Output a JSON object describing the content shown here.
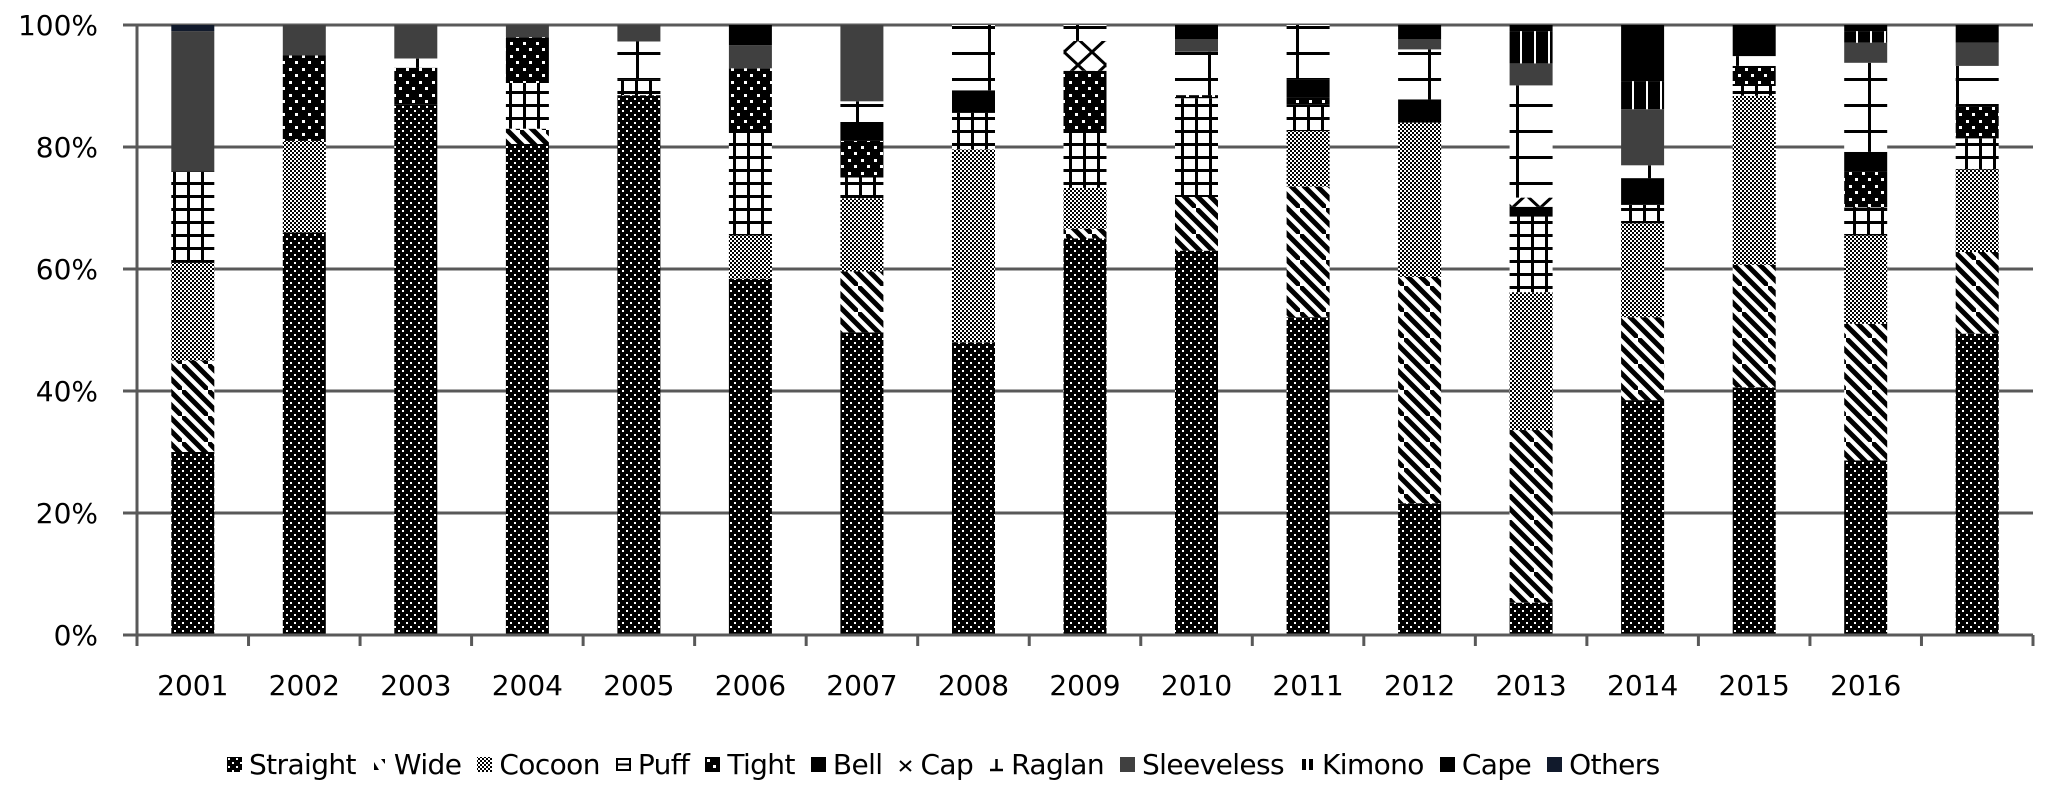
{
  "chart_data": {
    "type": "bar",
    "stacked": true,
    "normalized": true,
    "title": "",
    "xlabel": "",
    "ylabel": "",
    "ylim": [
      0,
      100
    ],
    "yticks": [
      "0%",
      "20%",
      "40%",
      "60%",
      "80%",
      "100%"
    ],
    "grid": true,
    "legend_position": "bottom",
    "categories": [
      "2001",
      "2002",
      "2003",
      "2004",
      "2005",
      "2006",
      "2007",
      "2008",
      "2009",
      "2010",
      "2011",
      "2012",
      "2013",
      "2014",
      "2015",
      "2016",
      ""
    ],
    "series": [
      {
        "name": "Straight",
        "pattern": "dots",
        "values": [
          30,
          66,
          87,
          80.5,
          88.5,
          58.4,
          49.6,
          48,
          65,
          63,
          52.1,
          21.6,
          5.3,
          38.5,
          40.6,
          28.6,
          49.4
        ]
      },
      {
        "name": "Wide",
        "pattern": "diagonal",
        "values": [
          15,
          0,
          0,
          2.5,
          0,
          0,
          10,
          0,
          1.6,
          8.8,
          21.4,
          37.1,
          28.3,
          13.6,
          20.1,
          22.4,
          13.4
        ]
      },
      {
        "name": "Cocoon",
        "pattern": "checker",
        "values": [
          16,
          15,
          0,
          0,
          0,
          7.1,
          12,
          31.6,
          6.7,
          0,
          9.1,
          25.3,
          22.6,
          15.4,
          27.7,
          14.5,
          13.5
        ]
      },
      {
        "name": "Puff",
        "pattern": "grid",
        "values": [
          15,
          0,
          0,
          7.5,
          2.5,
          16.8,
          3.4,
          6,
          9,
          16.2,
          4.4,
          0,
          12.4,
          3,
          1.6,
          4.6,
          5.1
        ]
      },
      {
        "name": "Tight",
        "pattern": "bigdots",
        "values": [
          0,
          14,
          6,
          7.5,
          0,
          10.6,
          6,
          0,
          10.2,
          0.5,
          1.1,
          0,
          0,
          0,
          3.3,
          5.9,
          5.3
        ]
      },
      {
        "name": "Bell",
        "pattern": "solid-black",
        "values": [
          0,
          0,
          0,
          0,
          0,
          0,
          3.1,
          3.7,
          0,
          0,
          2.9,
          3.8,
          1.6,
          4.4,
          0,
          3.2,
          0
        ]
      },
      {
        "name": "Cap",
        "pattern": "cross",
        "values": [
          0,
          0,
          0,
          0,
          0,
          0,
          0,
          0,
          4.9,
          0,
          0,
          0,
          1.5,
          0,
          0,
          0,
          0
        ]
      },
      {
        "name": "Raglan",
        "pattern": "raglan",
        "values": [
          0,
          0,
          1.5,
          0,
          6.3,
          0,
          3.4,
          10.7,
          2.6,
          7.1,
          9,
          8.2,
          18.4,
          2.1,
          1.6,
          14.6,
          6.6
        ]
      },
      {
        "name": "Sleeveless",
        "pattern": "solid-gray",
        "values": [
          23,
          5,
          5.5,
          2,
          2.7,
          3.8,
          12.5,
          0,
          0,
          2.1,
          0,
          1.7,
          3.6,
          9.2,
          0,
          3.3,
          3.8
        ]
      },
      {
        "name": "Kimono",
        "pattern": "kimono",
        "values": [
          0,
          0,
          0,
          0,
          0,
          0,
          0,
          0,
          0,
          0,
          0,
          0,
          5.3,
          4.6,
          0,
          1.9,
          0
        ]
      },
      {
        "name": "Cape",
        "pattern": "solid-black",
        "values": [
          0,
          0,
          0,
          0,
          0,
          3.3,
          0,
          0,
          0,
          2.3,
          0,
          2.3,
          1,
          9.2,
          5.1,
          1,
          2.9
        ]
      },
      {
        "name": "Others",
        "pattern": "solid-navy",
        "values": [
          1,
          0,
          0,
          0,
          0,
          0,
          0,
          0,
          0,
          0,
          0,
          0,
          0,
          0,
          0,
          0,
          0
        ]
      }
    ]
  },
  "legend": {
    "items": [
      {
        "label": "Straight",
        "icon": "dots-swatch"
      },
      {
        "label": "Wide",
        "icon": "diagonal-swatch"
      },
      {
        "label": "Cocoon",
        "icon": "checker-swatch"
      },
      {
        "label": "Puff",
        "icon": "grid-swatch"
      },
      {
        "label": "Tight",
        "icon": "bigdots-swatch"
      },
      {
        "label": "Bell",
        "icon": "solid-black-swatch"
      },
      {
        "label": "Cap",
        "icon": "cross-swatch"
      },
      {
        "label": "Raglan",
        "icon": "raglan-swatch"
      },
      {
        "label": "Sleeveless",
        "icon": "solid-gray-swatch"
      },
      {
        "label": "Kimono",
        "icon": "kimono-swatch"
      },
      {
        "label": "Cape",
        "icon": "solid-black-swatch"
      },
      {
        "label": "Others",
        "icon": "solid-navy-swatch"
      }
    ]
  },
  "colors": {
    "black": "#000000",
    "sleeveless": "#404040",
    "others": "#111a2c",
    "axis": "#595959",
    "gridline": "#595959"
  }
}
